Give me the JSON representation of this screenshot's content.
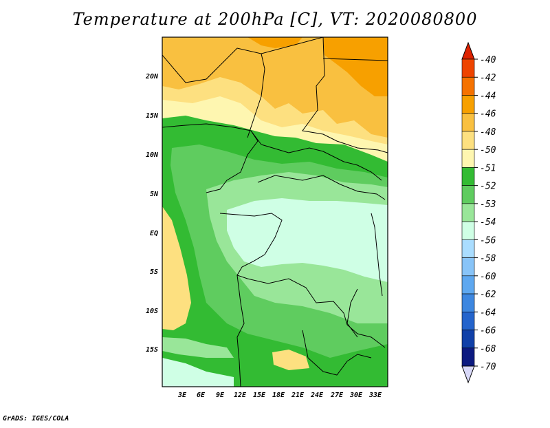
{
  "title": "Temperature at 200hPa [C], VT: 2020080800",
  "credit": "GrADS: IGES/COLA",
  "map": {
    "lat_labels": [
      "20N",
      "15N",
      "10N",
      "5N",
      "EQ",
      "5S",
      "10S",
      "15S"
    ],
    "lon_labels": [
      "3E",
      "6E",
      "9E",
      "12E",
      "15E",
      "18E",
      "21E",
      "24E",
      "27E",
      "30E",
      "33E"
    ]
  },
  "colorbar": {
    "labels": [
      "-40",
      "-42",
      "-44",
      "-46",
      "-48",
      "-50",
      "-51",
      "-52",
      "-53",
      "-54",
      "-56",
      "-58",
      "-60",
      "-62",
      "-64",
      "-66",
      "-68",
      "-70"
    ],
    "colors": [
      "#dd2200",
      "#ee4400",
      "#f57200",
      "#f7a000",
      "#f9c040",
      "#fde080",
      "#fef6b0",
      "#33bb33",
      "#5fcc5f",
      "#99e699",
      "#cfffe5",
      "#aaddff",
      "#88c4f8",
      "#5ea8f0",
      "#3d87e0",
      "#2464cc",
      "#1040a8",
      "#0c1a80",
      "#d8d8f8"
    ]
  }
}
